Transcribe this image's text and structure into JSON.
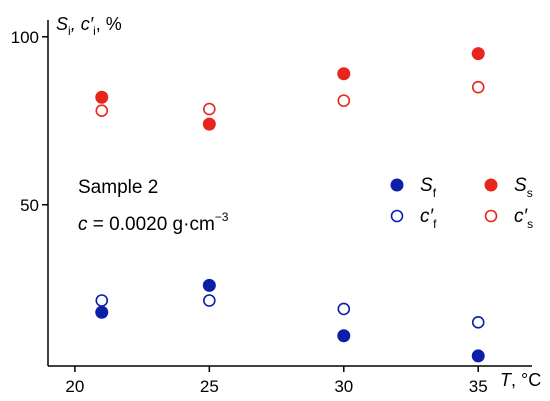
{
  "chart_data": {
    "type": "scatter",
    "ylabel": {
      "main": "S",
      "sub1": "i",
      "sep": ", c′",
      "sub2": "i",
      "unit": ", %"
    },
    "xlabel": {
      "var": "T",
      "unit": ", °C"
    },
    "xticks": [
      20,
      25,
      30,
      35
    ],
    "yticks": [
      50,
      100
    ],
    "xlim": [
      19,
      37
    ],
    "ylim": [
      2,
      105
    ],
    "annotation": {
      "line1": "Sample 2",
      "line2_var": "c",
      "line2_value": " = 0.0020 g·cm",
      "line2_exp": "−3"
    },
    "series": [
      {
        "name": "S_f",
        "legend": {
          "main": "S",
          "sub": "f"
        },
        "color": "#0d1fa8",
        "filled": true,
        "x": [
          21,
          25,
          30,
          35
        ],
        "y": [
          18,
          26,
          11,
          5
        ]
      },
      {
        "name": "c'_f",
        "legend": {
          "main": "c′",
          "sub": "f"
        },
        "color": "#0d1fa8",
        "filled": false,
        "x": [
          21,
          25,
          30,
          35
        ],
        "y": [
          21.5,
          21.5,
          19,
          15
        ]
      },
      {
        "name": "S_s",
        "legend": {
          "main": "S",
          "sub": "s"
        },
        "color": "#e8251d",
        "filled": true,
        "x": [
          21,
          25,
          30,
          35
        ],
        "y": [
          82,
          74,
          89,
          95
        ]
      },
      {
        "name": "c'_s",
        "legend": {
          "main": "c′",
          "sub": "s"
        },
        "color": "#e8251d",
        "filled": false,
        "x": [
          21,
          25,
          30,
          35
        ],
        "y": [
          78,
          78.5,
          81,
          85
        ]
      }
    ],
    "grid": false,
    "legend_position": "right"
  }
}
